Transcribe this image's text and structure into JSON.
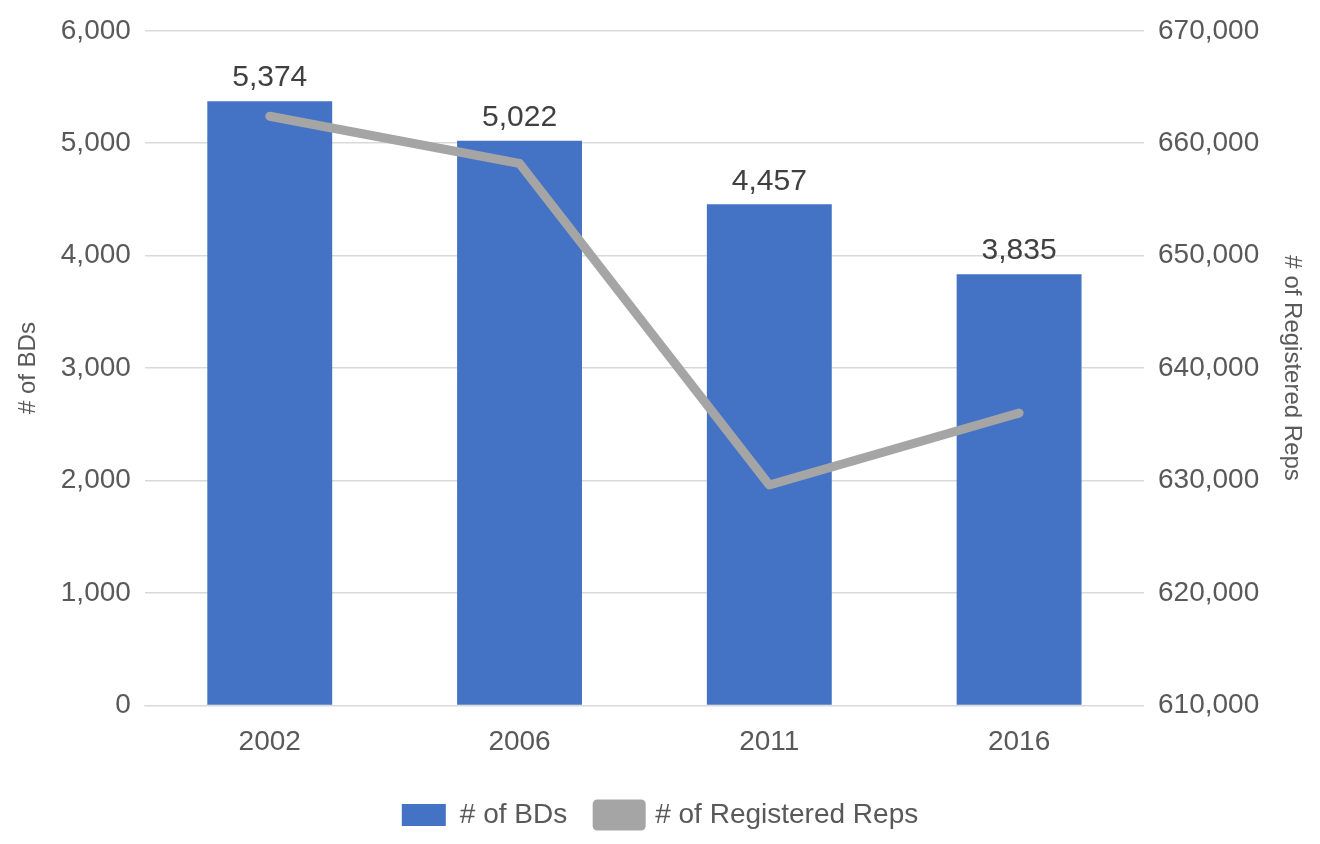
{
  "chart_data": {
    "type": "bar",
    "categories": [
      "2002",
      "2006",
      "2011",
      "2016"
    ],
    "ylabel": "# of BDs",
    "y2label": "# of Registered Reps",
    "ylim": [
      0,
      6000
    ],
    "yticks": [
      0,
      {
        "value": 1000,
        "label": "1,000"
      },
      {
        "value": 2000,
        "label": "2,000"
      },
      {
        "value": 3000,
        "label": "3,000"
      },
      {
        "value": 4000,
        "label": "4,000"
      },
      {
        "value": 5000,
        "label": "5,000"
      },
      {
        "value": 6000,
        "label": "6,000"
      }
    ],
    "y2lim": [
      610000,
      670000
    ],
    "y2ticks": [
      {
        "value": 610000,
        "label": "610,000"
      },
      {
        "value": 620000,
        "label": "620,000"
      },
      {
        "value": 630000,
        "label": "630,000"
      },
      {
        "value": 640000,
        "label": "640,000"
      },
      {
        "value": 650000,
        "label": "650,000"
      },
      {
        "value": 660000,
        "label": "660,000"
      },
      {
        "value": 670000,
        "label": "670,000"
      }
    ],
    "grid": "y",
    "legend": "bottom",
    "marker": "none",
    "series": [
      {
        "name": "# of BDs",
        "type": "bar",
        "color": "#4472c4",
        "values": [
          5374,
          5022,
          4457,
          3835
        ],
        "value_labels": [
          "5,374",
          "5,022",
          "4,457",
          "3,835"
        ]
      },
      {
        "name": "# of Registered Reps",
        "type": "line",
        "axis": "y2",
        "color": "#a5a5a5",
        "values": [
          662400,
          658200,
          629600,
          636000
        ]
      }
    ]
  }
}
